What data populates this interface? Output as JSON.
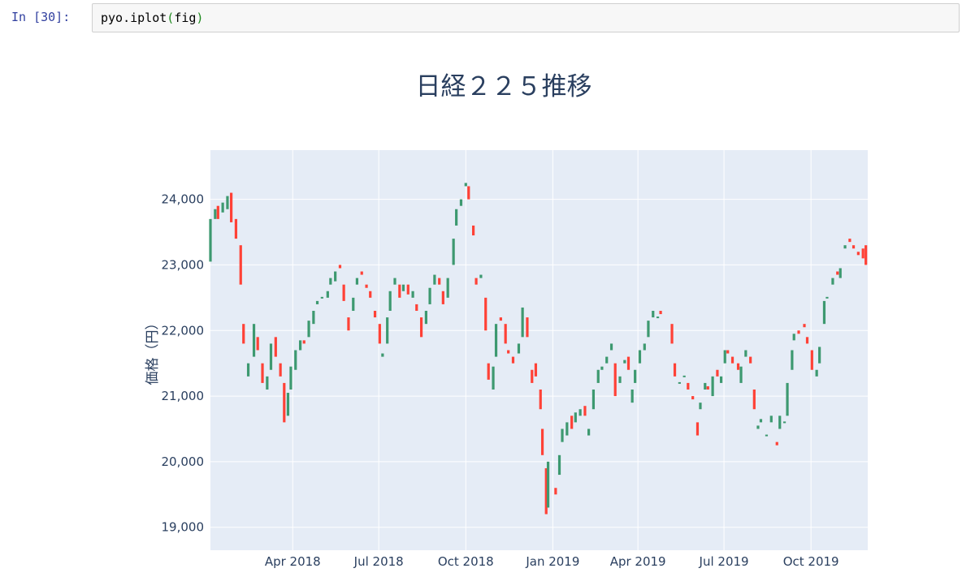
{
  "cell": {
    "prompt": "In [30]:",
    "code_obj": "pyo.iplot",
    "code_open": "(",
    "code_arg": "fig",
    "code_close": ")"
  },
  "colors": {
    "plot_bg": "#e5ecf6",
    "grid": "#ffffff",
    "increasing": "#3d9970",
    "decreasing": "#ff4136",
    "title": "#2a3f5f"
  },
  "chart_data": {
    "type": "candlestick",
    "title": "日経２２５推移",
    "ylabel": "価格（円）",
    "xlabel": "",
    "grid": true,
    "legend": "none",
    "x_range": [
      "2018-01-04",
      "2019-11-30"
    ],
    "ylim": [
      18650,
      24750
    ],
    "y_ticks": [
      19000,
      20000,
      21000,
      22000,
      23000,
      24000
    ],
    "y_tick_labels": [
      "19,000",
      "20,000",
      "21,000",
      "22,000",
      "23,000",
      "24,000"
    ],
    "x_ticks": [
      "2018-04-01",
      "2018-07-01",
      "2018-10-01",
      "2019-01-01",
      "2019-04-01",
      "2019-07-01",
      "2019-10-01"
    ],
    "x_tick_labels": [
      "Apr 2018",
      "Jul 2018",
      "Oct 2018",
      "Jan 2019",
      "Apr 2019",
      "Jul 2019",
      "Oct 2019"
    ],
    "series": [
      {
        "points": [
          [
            "2018-01-04",
            23050,
            23700
          ],
          [
            "2018-01-09",
            23700,
            23850
          ],
          [
            "2018-01-12",
            23900,
            23700
          ],
          [
            "2018-01-17",
            23800,
            23950
          ],
          [
            "2018-01-22",
            23850,
            24050
          ],
          [
            "2018-01-26",
            24100,
            23650
          ],
          [
            "2018-01-31",
            23700,
            23400
          ],
          [
            "2018-02-05",
            23300,
            22700
          ],
          [
            "2018-02-08",
            22100,
            21800
          ],
          [
            "2018-02-13",
            21300,
            21500
          ],
          [
            "2018-02-19",
            21600,
            22100
          ],
          [
            "2018-02-23",
            21900,
            21700
          ],
          [
            "2018-02-28",
            21500,
            21200
          ],
          [
            "2018-03-05",
            21100,
            21300
          ],
          [
            "2018-03-09",
            21400,
            21800
          ],
          [
            "2018-03-14",
            21900,
            21600
          ],
          [
            "2018-03-19",
            21500,
            21300
          ],
          [
            "2018-03-23",
            21200,
            20600
          ],
          [
            "2018-03-27",
            20700,
            21050
          ],
          [
            "2018-03-30",
            21100,
            21450
          ],
          [
            "2018-04-04",
            21400,
            21700
          ],
          [
            "2018-04-09",
            21700,
            21850
          ],
          [
            "2018-04-13",
            21850,
            21800
          ],
          [
            "2018-04-18",
            21900,
            22150
          ],
          [
            "2018-04-23",
            22100,
            22300
          ],
          [
            "2018-04-27",
            22400,
            22450
          ],
          [
            "2018-05-02",
            22500,
            22500
          ],
          [
            "2018-05-08",
            22500,
            22600
          ],
          [
            "2018-05-11",
            22700,
            22800
          ],
          [
            "2018-05-16",
            22750,
            22900
          ],
          [
            "2018-05-21",
            23000,
            22950
          ],
          [
            "2018-05-25",
            22700,
            22450
          ],
          [
            "2018-05-30",
            22200,
            22000
          ],
          [
            "2018-06-04",
            22300,
            22500
          ],
          [
            "2018-06-08",
            22700,
            22800
          ],
          [
            "2018-06-13",
            22900,
            22850
          ],
          [
            "2018-06-18",
            22700,
            22650
          ],
          [
            "2018-06-22",
            22600,
            22500
          ],
          [
            "2018-06-27",
            22300,
            22200
          ],
          [
            "2018-07-02",
            22100,
            21800
          ],
          [
            "2018-07-05",
            21600,
            21650
          ],
          [
            "2018-07-10",
            21800,
            22200
          ],
          [
            "2018-07-13",
            22300,
            22600
          ],
          [
            "2018-07-18",
            22700,
            22800
          ],
          [
            "2018-07-23",
            22700,
            22500
          ],
          [
            "2018-07-27",
            22600,
            22700
          ],
          [
            "2018-08-01",
            22700,
            22550
          ],
          [
            "2018-08-06",
            22500,
            22600
          ],
          [
            "2018-08-10",
            22400,
            22300
          ],
          [
            "2018-08-15",
            22200,
            21900
          ],
          [
            "2018-08-20",
            22100,
            22300
          ],
          [
            "2018-08-24",
            22400,
            22650
          ],
          [
            "2018-08-29",
            22700,
            22850
          ],
          [
            "2018-09-03",
            22800,
            22700
          ],
          [
            "2018-09-07",
            22600,
            22400
          ],
          [
            "2018-09-12",
            22500,
            22800
          ],
          [
            "2018-09-18",
            23000,
            23400
          ],
          [
            "2018-09-21",
            23600,
            23850
          ],
          [
            "2018-09-26",
            23900,
            24000
          ],
          [
            "2018-10-01",
            24200,
            24250
          ],
          [
            "2018-10-04",
            24200,
            24000
          ],
          [
            "2018-10-09",
            23600,
            23450
          ],
          [
            "2018-10-12",
            22800,
            22700
          ],
          [
            "2018-10-17",
            22800,
            22850
          ],
          [
            "2018-10-22",
            22500,
            22000
          ],
          [
            "2018-10-25",
            21500,
            21250
          ],
          [
            "2018-10-30",
            21100,
            21450
          ],
          [
            "2018-11-02",
            21600,
            22100
          ],
          [
            "2018-11-07",
            22200,
            22150
          ],
          [
            "2018-11-12",
            22100,
            21800
          ],
          [
            "2018-11-15",
            21700,
            21650
          ],
          [
            "2018-11-20",
            21600,
            21500
          ],
          [
            "2018-11-26",
            21650,
            21800
          ],
          [
            "2018-11-30",
            21900,
            22350
          ],
          [
            "2018-12-05",
            22200,
            21900
          ],
          [
            "2018-12-10",
            21400,
            21200
          ],
          [
            "2018-12-14",
            21500,
            21300
          ],
          [
            "2018-12-19",
            21100,
            20800
          ],
          [
            "2018-12-21",
            20500,
            20100
          ],
          [
            "2018-12-25",
            19900,
            19200
          ],
          [
            "2018-12-27",
            19300,
            20000
          ],
          [
            "2019-01-04",
            19600,
            19500
          ],
          [
            "2019-01-08",
            19800,
            20100
          ],
          [
            "2019-01-11",
            20300,
            20500
          ],
          [
            "2019-01-16",
            20400,
            20600
          ],
          [
            "2019-01-21",
            20700,
            20500
          ],
          [
            "2019-01-25",
            20600,
            20750
          ],
          [
            "2019-01-30",
            20700,
            20800
          ],
          [
            "2019-02-04",
            20850,
            20700
          ],
          [
            "2019-02-08",
            20400,
            20500
          ],
          [
            "2019-02-13",
            20800,
            21100
          ],
          [
            "2019-02-18",
            21200,
            21400
          ],
          [
            "2019-02-22",
            21400,
            21450
          ],
          [
            "2019-02-27",
            21500,
            21600
          ],
          [
            "2019-03-04",
            21700,
            21800
          ],
          [
            "2019-03-08",
            21500,
            21000
          ],
          [
            "2019-03-13",
            21200,
            21300
          ],
          [
            "2019-03-18",
            21500,
            21550
          ],
          [
            "2019-03-22",
            21600,
            21400
          ],
          [
            "2019-03-26",
            20900,
            21100
          ],
          [
            "2019-03-29",
            21200,
            21400
          ],
          [
            "2019-04-03",
            21500,
            21700
          ],
          [
            "2019-04-08",
            21700,
            21800
          ],
          [
            "2019-04-12",
            21900,
            22150
          ],
          [
            "2019-04-17",
            22200,
            22300
          ],
          [
            "2019-04-22",
            22200,
            22200
          ],
          [
            "2019-04-25",
            22300,
            22250
          ],
          [
            "2019-05-07",
            22100,
            21800
          ],
          [
            "2019-05-10",
            21500,
            21300
          ],
          [
            "2019-05-15",
            21200,
            21200
          ],
          [
            "2019-05-20",
            21300,
            21300
          ],
          [
            "2019-05-24",
            21200,
            21100
          ],
          [
            "2019-05-29",
            21000,
            20950
          ],
          [
            "2019-06-03",
            20600,
            20400
          ],
          [
            "2019-06-06",
            20800,
            20900
          ],
          [
            "2019-06-11",
            21100,
            21200
          ],
          [
            "2019-06-14",
            21150,
            21100
          ],
          [
            "2019-06-19",
            21000,
            21300
          ],
          [
            "2019-06-24",
            21400,
            21300
          ],
          [
            "2019-06-28",
            21200,
            21300
          ],
          [
            "2019-07-02",
            21500,
            21700
          ],
          [
            "2019-07-05",
            21700,
            21650
          ],
          [
            "2019-07-10",
            21600,
            21500
          ],
          [
            "2019-07-16",
            21500,
            21400
          ],
          [
            "2019-07-19",
            21200,
            21450
          ],
          [
            "2019-07-24",
            21600,
            21700
          ],
          [
            "2019-07-29",
            21600,
            21500
          ],
          [
            "2019-08-02",
            21100,
            20800
          ],
          [
            "2019-08-06",
            20500,
            20550
          ],
          [
            "2019-08-09",
            20600,
            20650
          ],
          [
            "2019-08-15",
            20400,
            20400
          ],
          [
            "2019-08-20",
            20600,
            20700
          ],
          [
            "2019-08-26",
            20300,
            20250
          ],
          [
            "2019-08-29",
            20500,
            20700
          ],
          [
            "2019-09-03",
            20600,
            20600
          ],
          [
            "2019-09-06",
            20700,
            21200
          ],
          [
            "2019-09-11",
            21400,
            21700
          ],
          [
            "2019-09-13",
            21850,
            21950
          ],
          [
            "2019-09-18",
            22000,
            21950
          ],
          [
            "2019-09-24",
            22100,
            22050
          ],
          [
            "2019-09-27",
            21900,
            21800
          ],
          [
            "2019-10-02",
            21700,
            21400
          ],
          [
            "2019-10-07",
            21300,
            21400
          ],
          [
            "2019-10-10",
            21500,
            21750
          ],
          [
            "2019-10-15",
            22100,
            22450
          ],
          [
            "2019-10-18",
            22500,
            22500
          ],
          [
            "2019-10-24",
            22700,
            22800
          ],
          [
            "2019-10-29",
            22900,
            22850
          ],
          [
            "2019-11-01",
            22800,
            22950
          ],
          [
            "2019-11-06",
            23250,
            23300
          ],
          [
            "2019-11-11",
            23400,
            23350
          ],
          [
            "2019-11-15",
            23300,
            23250
          ],
          [
            "2019-11-20",
            23200,
            23150
          ],
          [
            "2019-11-25",
            23250,
            23100
          ],
          [
            "2019-11-28",
            23300,
            23000
          ]
        ]
      }
    ]
  }
}
